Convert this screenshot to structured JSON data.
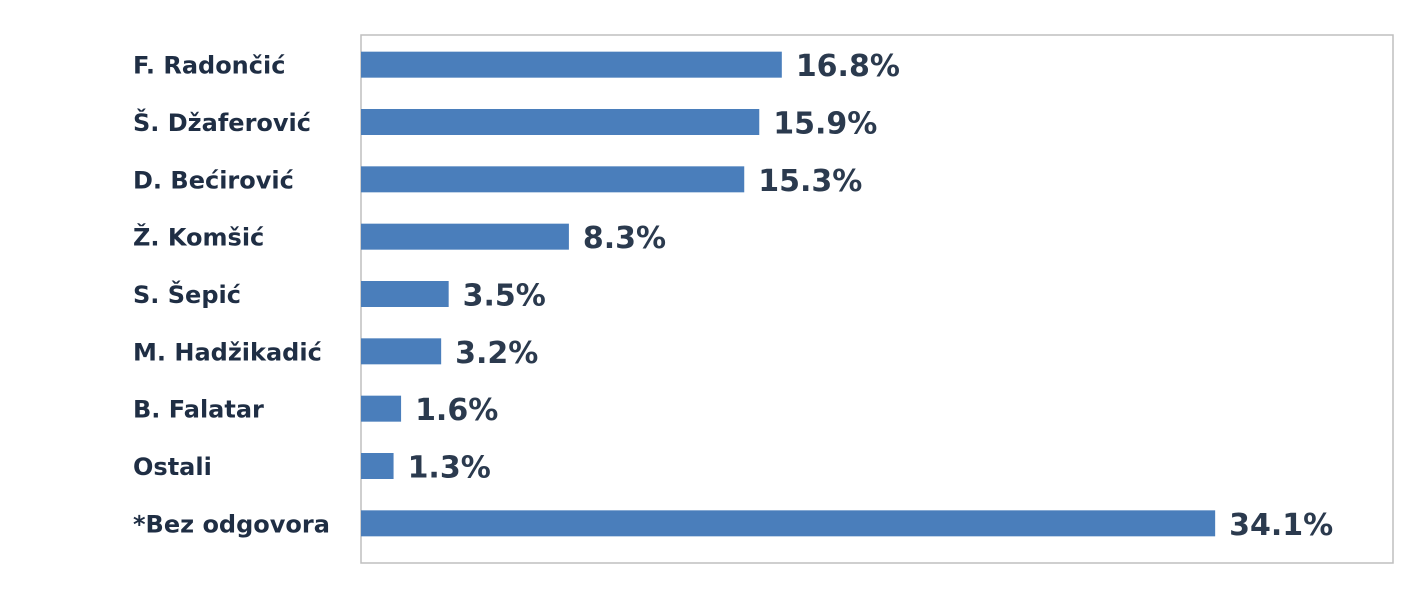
{
  "chart_data": {
    "type": "hbar",
    "categories": [
      "F. Radončić",
      "Š. Džaferović",
      "D. Bećirović",
      "Ž. Komšić",
      "S. Šepić",
      "M. Hadžikadić",
      "B. Falatar",
      "Ostali",
      "*Bez odgovora"
    ],
    "values": [
      16.8,
      15.9,
      15.3,
      8.3,
      3.5,
      3.2,
      1.6,
      1.3,
      34.1
    ],
    "value_labels": [
      "16.8%",
      "15.9%",
      "15.3%",
      "8.3%",
      "3.5%",
      "3.2%",
      "1.6%",
      "1.3%",
      "34.1%"
    ],
    "color": "#4a7ebb",
    "xlim": [
      0,
      41.2
    ]
  }
}
